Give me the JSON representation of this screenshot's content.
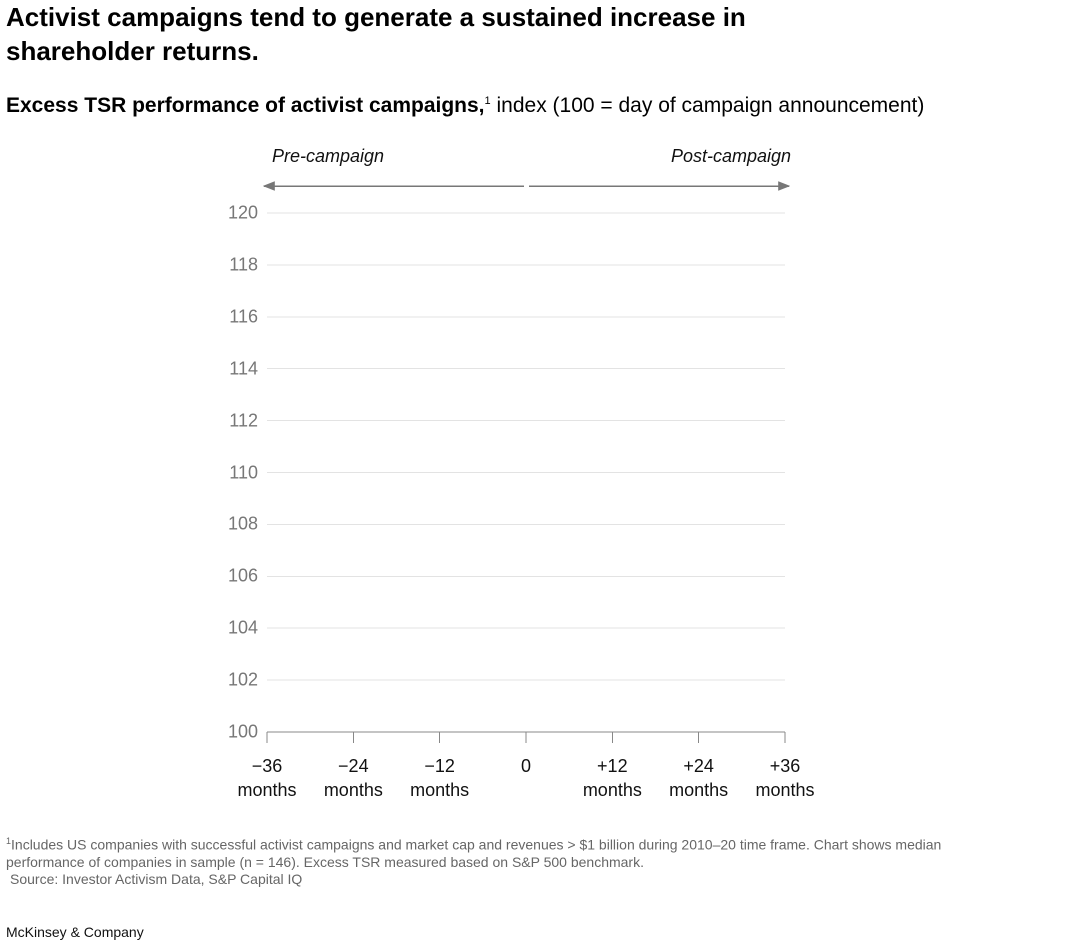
{
  "chart_data": {
    "type": "line",
    "title": "Activist campaigns tend to generate a sustained increase in shareholder returns.",
    "subtitle": {
      "bold": "Excess TSR performance of activist campaigns,",
      "marker": "1",
      "text": "index (100 = day of campaign announcement)"
    },
    "annotations": [
      "Pre-campaign",
      "Post-campaign"
    ],
    "series": [],
    "xlim": [
      -36,
      36
    ],
    "xticks": [
      {
        "value": -36,
        "label": "−36 months"
      },
      {
        "value": -24,
        "label": "−24 months"
      },
      {
        "value": -12,
        "label": "−12 months"
      },
      0,
      {
        "value": 12,
        "label": "+12 months"
      },
      {
        "value": 24,
        "label": "+24 months"
      },
      {
        "value": 36,
        "label": "+36 months"
      }
    ],
    "ylim": [
      100,
      120
    ],
    "yticks": [
      100,
      102,
      104,
      106,
      108,
      110,
      112,
      114,
      116,
      118,
      120
    ],
    "grid": true
  },
  "footnote": {
    "marker": "1",
    "text": "Includes US companies with successful activist campaigns and market cap and revenues > $1 billion during 2010–20 time frame. Chart shows median performance of companies in sample (n = 146). Excess TSR measured based on S&P 500 benchmark.",
    "source": "Source: Investor Activism Data, S&P Capital IQ"
  },
  "brand": "McKinsey & Company"
}
